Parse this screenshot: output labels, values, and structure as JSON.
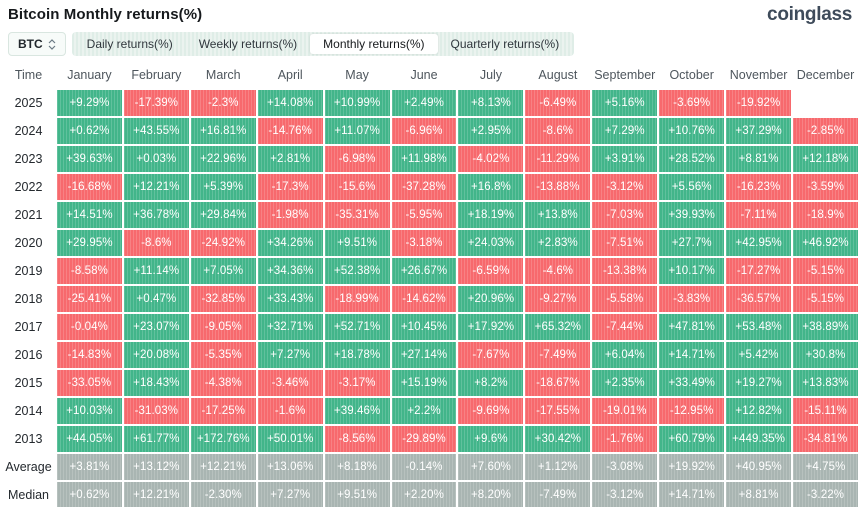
{
  "title": "Bitcoin Monthly returns(%)",
  "logo": "coinglass",
  "toolbar": {
    "symbol_selector": {
      "label": "BTC",
      "icon": "up-down-arrows-icon"
    },
    "tabs": [
      {
        "label": "Daily returns(%)",
        "active": false
      },
      {
        "label": "Weekly returns(%)",
        "active": false
      },
      {
        "label": "Monthly returns(%)",
        "active": true
      },
      {
        "label": "Quarterly returns(%)",
        "active": false
      }
    ]
  },
  "colors": {
    "positive": "#42b58a",
    "negative": "#f7696d",
    "neutral": "#a9b5b2",
    "tab_bar_bg": "#ebf3ef",
    "logo_text": "#3e4b5a"
  },
  "chart_data": {
    "type": "heatmap",
    "title": "Bitcoin Monthly returns(%)",
    "columns": [
      "Time",
      "January",
      "February",
      "March",
      "April",
      "May",
      "June",
      "July",
      "August",
      "September",
      "October",
      "November",
      "December"
    ],
    "rows": [
      {
        "label": "2025",
        "type": "year",
        "values": [
          "+9.29%",
          "-17.39%",
          "-2.3%",
          "+14.08%",
          "+10.99%",
          "+2.49%",
          "+8.13%",
          "-6.49%",
          "+5.16%",
          "-3.69%",
          "-19.92%",
          ""
        ]
      },
      {
        "label": "2024",
        "type": "year",
        "values": [
          "+0.62%",
          "+43.55%",
          "+16.81%",
          "-14.76%",
          "+11.07%",
          "-6.96%",
          "+2.95%",
          "-8.6%",
          "+7.29%",
          "+10.76%",
          "+37.29%",
          "-2.85%"
        ]
      },
      {
        "label": "2023",
        "type": "year",
        "values": [
          "+39.63%",
          "+0.03%",
          "+22.96%",
          "+2.81%",
          "-6.98%",
          "+11.98%",
          "-4.02%",
          "-11.29%",
          "+3.91%",
          "+28.52%",
          "+8.81%",
          "+12.18%"
        ]
      },
      {
        "label": "2022",
        "type": "year",
        "values": [
          "-16.68%",
          "+12.21%",
          "+5.39%",
          "-17.3%",
          "-15.6%",
          "-37.28%",
          "+16.8%",
          "-13.88%",
          "-3.12%",
          "+5.56%",
          "-16.23%",
          "-3.59%"
        ]
      },
      {
        "label": "2021",
        "type": "year",
        "values": [
          "+14.51%",
          "+36.78%",
          "+29.84%",
          "-1.98%",
          "-35.31%",
          "-5.95%",
          "+18.19%",
          "+13.8%",
          "-7.03%",
          "+39.93%",
          "-7.11%",
          "-18.9%"
        ]
      },
      {
        "label": "2020",
        "type": "year",
        "values": [
          "+29.95%",
          "-8.6%",
          "-24.92%",
          "+34.26%",
          "+9.51%",
          "-3.18%",
          "+24.03%",
          "+2.83%",
          "-7.51%",
          "+27.7%",
          "+42.95%",
          "+46.92%"
        ]
      },
      {
        "label": "2019",
        "type": "year",
        "values": [
          "-8.58%",
          "+11.14%",
          "+7.05%",
          "+34.36%",
          "+52.38%",
          "+26.67%",
          "-6.59%",
          "-4.6%",
          "-13.38%",
          "+10.17%",
          "-17.27%",
          "-5.15%"
        ]
      },
      {
        "label": "2018",
        "type": "year",
        "values": [
          "-25.41%",
          "+0.47%",
          "-32.85%",
          "+33.43%",
          "-18.99%",
          "-14.62%",
          "+20.96%",
          "-9.27%",
          "-5.58%",
          "-3.83%",
          "-36.57%",
          "-5.15%"
        ]
      },
      {
        "label": "2017",
        "type": "year",
        "values": [
          "-0.04%",
          "+23.07%",
          "-9.05%",
          "+32.71%",
          "+52.71%",
          "+10.45%",
          "+17.92%",
          "+65.32%",
          "-7.44%",
          "+47.81%",
          "+53.48%",
          "+38.89%"
        ]
      },
      {
        "label": "2016",
        "type": "year",
        "values": [
          "-14.83%",
          "+20.08%",
          "-5.35%",
          "+7.27%",
          "+18.78%",
          "+27.14%",
          "-7.67%",
          "-7.49%",
          "+6.04%",
          "+14.71%",
          "+5.42%",
          "+30.8%"
        ]
      },
      {
        "label": "2015",
        "type": "year",
        "values": [
          "-33.05%",
          "+18.43%",
          "-4.38%",
          "-3.46%",
          "-3.17%",
          "+15.19%",
          "+8.2%",
          "-18.67%",
          "+2.35%",
          "+33.49%",
          "+19.27%",
          "+13.83%"
        ]
      },
      {
        "label": "2014",
        "type": "year",
        "values": [
          "+10.03%",
          "-31.03%",
          "-17.25%",
          "-1.6%",
          "+39.46%",
          "+2.2%",
          "-9.69%",
          "-17.55%",
          "-19.01%",
          "-12.95%",
          "+12.82%",
          "-15.11%"
        ]
      },
      {
        "label": "2013",
        "type": "year",
        "values": [
          "+44.05%",
          "+61.77%",
          "+172.76%",
          "+50.01%",
          "-8.56%",
          "-29.89%",
          "+9.6%",
          "+30.42%",
          "-1.76%",
          "+60.79%",
          "+449.35%",
          "-34.81%"
        ]
      },
      {
        "label": "Average",
        "type": "summary",
        "values": [
          "+3.81%",
          "+13.12%",
          "+12.21%",
          "+13.06%",
          "+8.18%",
          "-0.14%",
          "+7.60%",
          "+1.12%",
          "-3.08%",
          "+19.92%",
          "+40.95%",
          "+4.75%"
        ]
      },
      {
        "label": "Median",
        "type": "summary",
        "values": [
          "+0.62%",
          "+12.21%",
          "-2.30%",
          "+7.27%",
          "+9.51%",
          "+2.20%",
          "+8.20%",
          "-7.49%",
          "-3.12%",
          "+14.71%",
          "+8.81%",
          "-3.22%"
        ]
      }
    ]
  }
}
